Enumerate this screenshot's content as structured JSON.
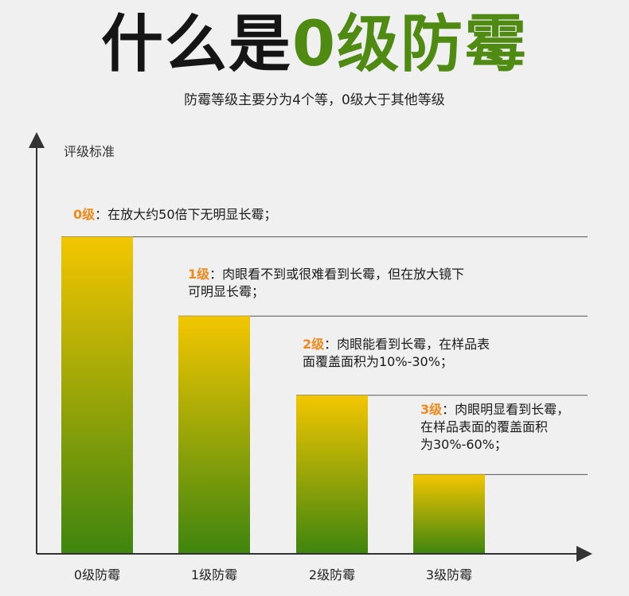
{
  "header": {
    "title_part1": "什么是",
    "title_part2": "0级防霉",
    "subtitle": "防霉等级主要分为4个等，0级大于其他等级"
  },
  "chart_data": {
    "type": "bar",
    "ylabel": "评级标准",
    "categories": [
      "0级防霉",
      "1级防霉",
      "2级防霉",
      "3级防霉"
    ],
    "values": [
      4,
      3,
      2,
      1
    ],
    "ylim": [
      0,
      5
    ],
    "grid": false,
    "annotations": [
      {
        "level": "0级",
        "line1": "：在放大约50倍下无明显长霉；",
        "line2": ""
      },
      {
        "level": "1级",
        "line1": "：肉眼看不到或很难看到长霉，但在放大镜下",
        "line2": "可明显长霉；"
      },
      {
        "level": "2级",
        "line1": "：肉眼能看到长霉，在样品表",
        "line2": "面覆盖面积为10%-30%；"
      },
      {
        "level": "3级",
        "line1": "：肉眼明显看到长霉，",
        "line2": "在样品表面的覆盖面积",
        "line3": "为30%-60%；"
      }
    ]
  },
  "colors": {
    "bar_top": "#f3c600",
    "bar_bottom": "#3f850f",
    "accent_green": "#4f8a13",
    "level_orange": "#f08a1c",
    "axis": "#333333",
    "guide_line": "#555555"
  }
}
